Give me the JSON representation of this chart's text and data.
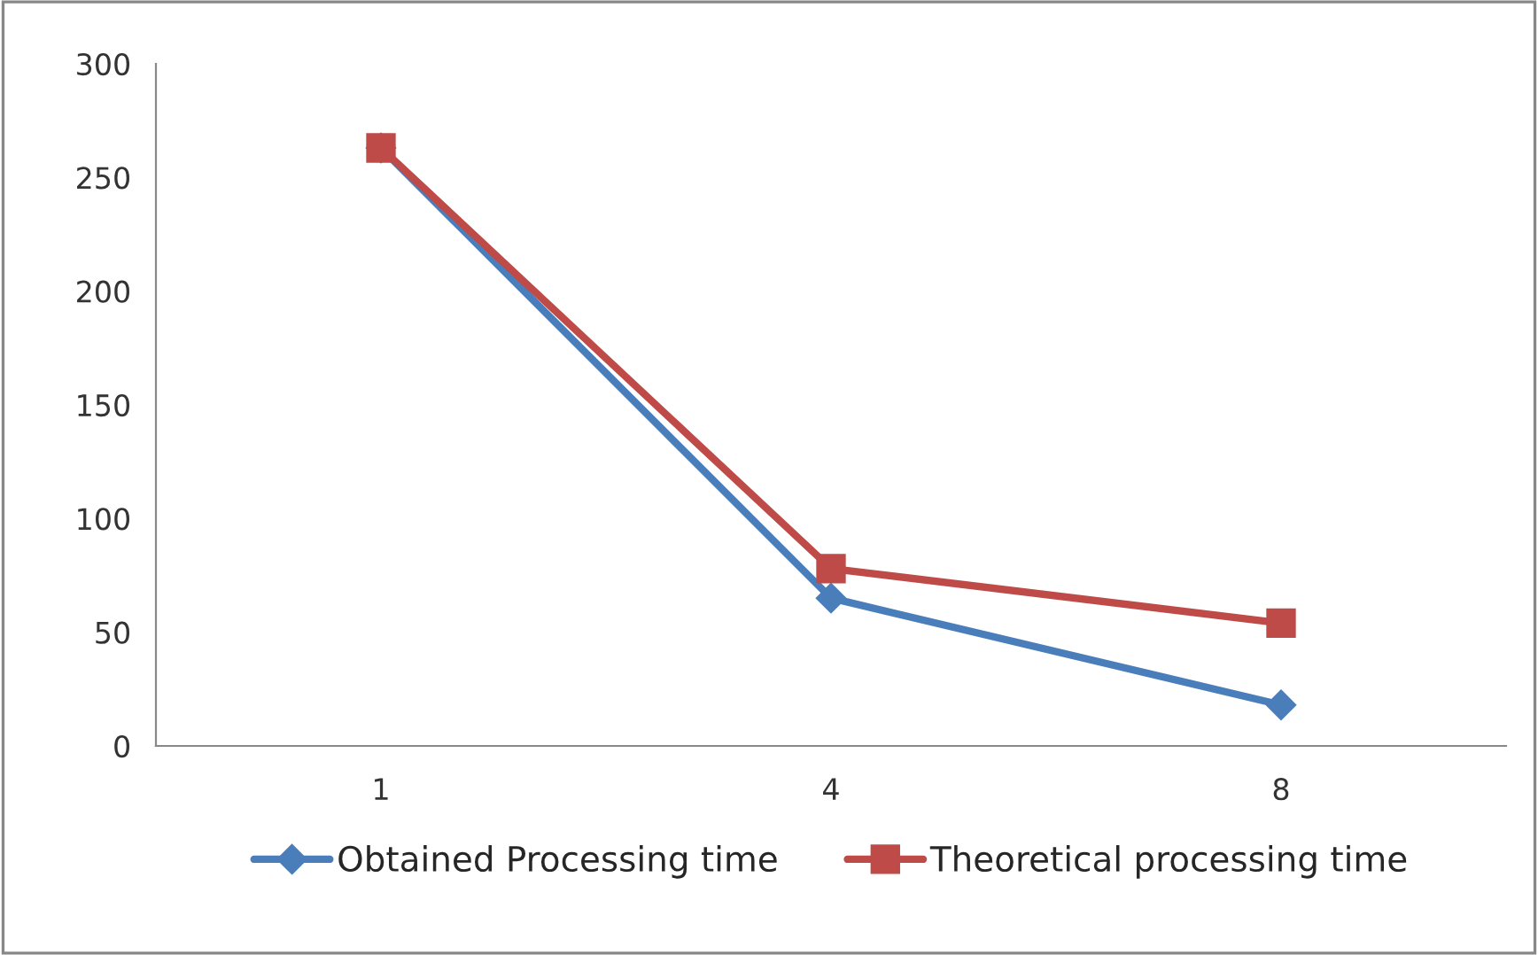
{
  "chart_data": {
    "type": "line",
    "categories": [
      "1",
      "4",
      "8"
    ],
    "series": [
      {
        "name": "Obtained Processing time",
        "color": "#4a7ebb",
        "values": [
          263,
          65,
          18
        ],
        "marker": "diamond"
      },
      {
        "name": "Theoretical processing time",
        "color": "#be4b48",
        "values": [
          263,
          78,
          54
        ],
        "marker": "square"
      }
    ],
    "ylim": [
      0,
      300
    ],
    "yticks": [
      0,
      50,
      100,
      150,
      200,
      250,
      300
    ],
    "grid": false,
    "legend": "bottom",
    "line_style": "solid"
  }
}
